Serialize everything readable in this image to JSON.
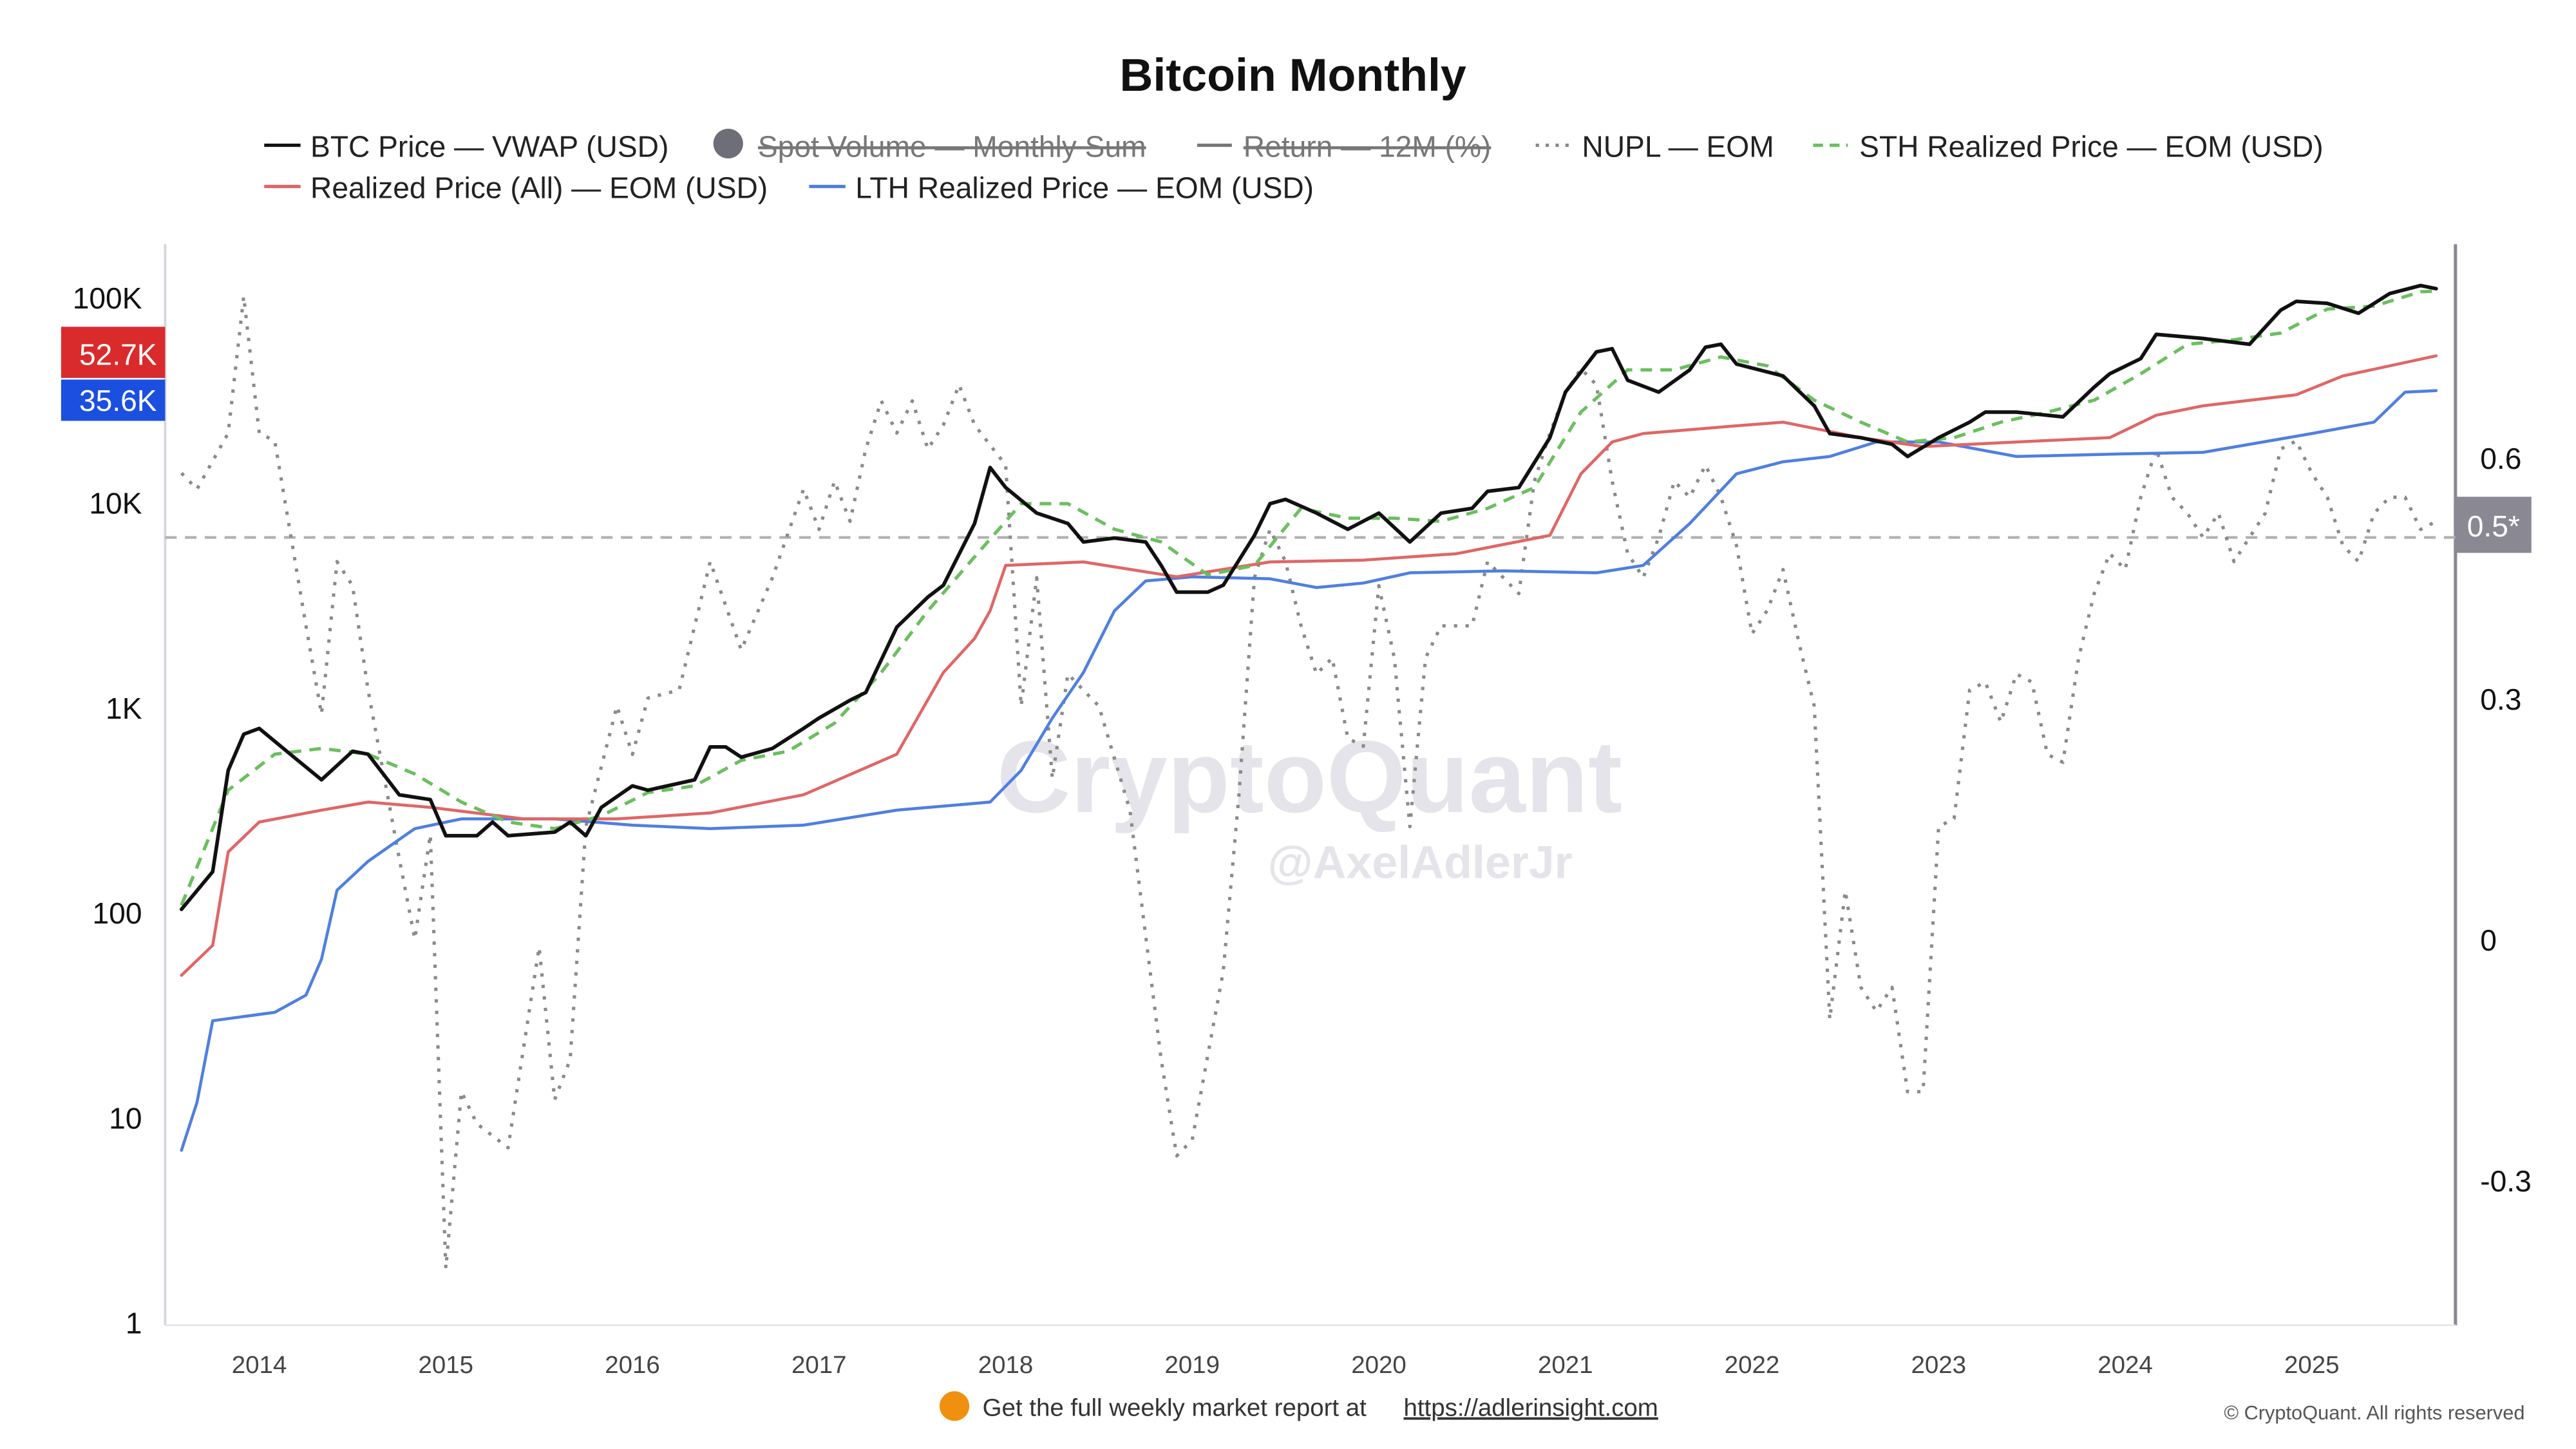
{
  "chart_data": {
    "type": "line",
    "title": "Bitcoin Monthly",
    "legend": [
      {
        "name": "BTC Price — VWAP (USD)",
        "color": "#111111",
        "style": "solid",
        "visible": true
      },
      {
        "name": "Spot Volume — Monthly Sum",
        "color": "#6e6e78",
        "style": "circle",
        "visible": false
      },
      {
        "name": "Return — 12M (%)",
        "color": "#777777",
        "style": "solid",
        "visible": false
      },
      {
        "name": "NUPL — EOM",
        "color": "#888888",
        "style": "dotted",
        "visible": true
      },
      {
        "name": "STH Realized Price — EOM (USD)",
        "color": "#6abf5e",
        "style": "dashed",
        "visible": true
      },
      {
        "name": "Realized Price (All) — EOM (USD)",
        "color": "#e06666",
        "style": "solid",
        "visible": true
      },
      {
        "name": "LTH Realized Price — EOM (USD)",
        "color": "#4f7fe0",
        "style": "solid",
        "visible": true
      }
    ],
    "legend_position": "top",
    "y_left": {
      "scale": "log",
      "range": [
        1,
        100000
      ],
      "ticks": [
        "1",
        "10",
        "100",
        "1K",
        "10K",
        "100K"
      ]
    },
    "y_right": {
      "scale": "linear",
      "range": [
        -0.45,
        0.8
      ],
      "ticks": [
        "-0.3",
        "0",
        "0.3",
        "0.6"
      ]
    },
    "x_ticks": [
      "2014",
      "2015",
      "2016",
      "2017",
      "2018",
      "2019",
      "2020",
      "2021",
      "2022",
      "2023",
      "2024",
      "2025"
    ],
    "grid": false,
    "reference_line": {
      "axis": "right",
      "value": 0.5,
      "label": "0.5*",
      "color": "#8a8893"
    },
    "last_value_badges": [
      {
        "label": "52.7K",
        "series": "Realized Price (All) — EOM (USD)",
        "color": "#d92b2b"
      },
      {
        "label": "35.6K",
        "series": "LTH Realized Price — EOM (USD)",
        "color": "#1a4fe0"
      }
    ],
    "series": [
      {
        "name": "BTC Price — VWAP (USD)",
        "axis": "left",
        "x": [
          "2013-08",
          "2013-10",
          "2013-11",
          "2013-12",
          "2014-01",
          "2014-03",
          "2014-05",
          "2014-07",
          "2014-08",
          "2014-10",
          "2014-12",
          "2015-01",
          "2015-03",
          "2015-04",
          "2015-05",
          "2015-08",
          "2015-09",
          "2015-10",
          "2015-11",
          "2016-01",
          "2016-02",
          "2016-05",
          "2016-06",
          "2016-07",
          "2016-08",
          "2016-10",
          "2016-12",
          "2017-01",
          "2017-03",
          "2017-04",
          "2017-06",
          "2017-08",
          "2017-09",
          "2017-11",
          "2017-12",
          "2018-01",
          "2018-03",
          "2018-05",
          "2018-06",
          "2018-08",
          "2018-10",
          "2018-11",
          "2018-12",
          "2019-02",
          "2019-03",
          "2019-05",
          "2019-06",
          "2019-07",
          "2019-09",
          "2019-11",
          "2020-01",
          "2020-03",
          "2020-05",
          "2020-07",
          "2020-08",
          "2020-10",
          "2020-12",
          "2021-01",
          "2021-03",
          "2021-04",
          "2021-05",
          "2021-07",
          "2021-09",
          "2021-10",
          "2021-11",
          "2021-12",
          "2022-03",
          "2022-05",
          "2022-06",
          "2022-08",
          "2022-10",
          "2022-11",
          "2023-01",
          "2023-03",
          "2023-04",
          "2023-06",
          "2023-08",
          "2023-09",
          "2023-11",
          "2023-12",
          "2024-02",
          "2024-03",
          "2024-06",
          "2024-09",
          "2024-11",
          "2024-12",
          "2025-02",
          "2025-04",
          "2025-06",
          "2025-08",
          "2025-09"
        ],
        "y": [
          105,
          160,
          500,
          750,
          800,
          600,
          450,
          620,
          600,
          380,
          360,
          240,
          240,
          280,
          240,
          250,
          280,
          240,
          330,
          420,
          400,
          450,
          650,
          650,
          580,
          640,
          800,
          900,
          1100,
          1200,
          2500,
          3500,
          4000,
          8000,
          15000,
          12000,
          9000,
          8000,
          6500,
          6800,
          6500,
          5000,
          3700,
          3700,
          4000,
          7000,
          10000,
          10500,
          9000,
          7500,
          9000,
          6500,
          9000,
          9500,
          11500,
          12000,
          21000,
          35000,
          55000,
          57000,
          40000,
          35000,
          45000,
          58000,
          60000,
          48000,
          42000,
          30000,
          22000,
          21000,
          19500,
          17000,
          21000,
          25000,
          28000,
          28000,
          27000,
          26500,
          37000,
          43000,
          51000,
          67000,
          64000,
          60000,
          88000,
          97000,
          95000,
          85000,
          106000,
          116000,
          112000
        ]
      },
      {
        "name": "STH Realized Price — EOM (USD)",
        "axis": "left",
        "x": [
          "2013-08",
          "2013-11",
          "2014-02",
          "2014-05",
          "2014-08",
          "2014-11",
          "2015-02",
          "2015-05",
          "2015-08",
          "2015-11",
          "2016-02",
          "2016-05",
          "2016-08",
          "2016-11",
          "2017-02",
          "2017-05",
          "2017-08",
          "2017-11",
          "2018-02",
          "2018-05",
          "2018-08",
          "2018-11",
          "2019-02",
          "2019-05",
          "2019-08",
          "2019-11",
          "2020-02",
          "2020-05",
          "2020-08",
          "2020-11",
          "2021-02",
          "2021-05",
          "2021-08",
          "2021-11",
          "2022-02",
          "2022-05",
          "2022-08",
          "2022-11",
          "2023-02",
          "2023-05",
          "2023-08",
          "2023-11",
          "2024-02",
          "2024-05",
          "2024-08",
          "2024-11",
          "2025-02",
          "2025-05",
          "2025-08",
          "2025-09"
        ],
        "y": [
          110,
          400,
          600,
          640,
          600,
          480,
          350,
          280,
          260,
          300,
          390,
          420,
          560,
          620,
          850,
          1500,
          3000,
          5500,
          10000,
          10000,
          7500,
          6500,
          4500,
          5000,
          9500,
          8500,
          8500,
          8200,
          9500,
          12000,
          28000,
          45000,
          45000,
          52000,
          47000,
          32000,
          25000,
          20000,
          21000,
          25000,
          28000,
          32000,
          43000,
          60000,
          63000,
          68000,
          89000,
          92000,
          108000,
          109000
        ]
      },
      {
        "name": "Realized Price (All) — EOM (USD)",
        "axis": "left",
        "x": [
          "2013-08",
          "2013-10",
          "2013-11",
          "2014-01",
          "2014-05",
          "2014-08",
          "2014-12",
          "2015-06",
          "2015-12",
          "2016-06",
          "2016-12",
          "2017-06",
          "2017-09",
          "2017-11",
          "2017-12",
          "2018-01",
          "2018-06",
          "2018-12",
          "2019-06",
          "2019-12",
          "2020-06",
          "2020-12",
          "2021-02",
          "2021-04",
          "2021-06",
          "2021-12",
          "2022-03",
          "2022-08",
          "2022-12",
          "2023-06",
          "2023-12",
          "2024-03",
          "2024-06",
          "2024-12",
          "2025-03",
          "2025-09"
        ],
        "y": [
          50,
          70,
          200,
          280,
          320,
          350,
          330,
          290,
          290,
          310,
          380,
          600,
          1500,
          2200,
          3000,
          5000,
          5200,
          4400,
          5200,
          5300,
          5700,
          7000,
          14000,
          20000,
          22000,
          24000,
          25000,
          21000,
          19000,
          20000,
          21000,
          27000,
          30000,
          34000,
          42000,
          52700
        ]
      },
      {
        "name": "LTH Realized Price — EOM (USD)",
        "axis": "left",
        "x": [
          "2013-08",
          "2013-09",
          "2013-10",
          "2014-02",
          "2014-04",
          "2014-05",
          "2014-06",
          "2014-08",
          "2014-11",
          "2015-02",
          "2015-08",
          "2016-01",
          "2016-06",
          "2016-12",
          "2017-06",
          "2017-12",
          "2018-02",
          "2018-04",
          "2018-06",
          "2018-08",
          "2018-10",
          "2019-01",
          "2019-06",
          "2019-09",
          "2019-12",
          "2020-03",
          "2020-09",
          "2021-03",
          "2021-06",
          "2021-09",
          "2021-12",
          "2022-03",
          "2022-06",
          "2022-09",
          "2023-01",
          "2023-06",
          "2024-01",
          "2024-06",
          "2025-01",
          "2025-05",
          "2025-07",
          "2025-09"
        ],
        "y": [
          7,
          12,
          30,
          33,
          40,
          60,
          130,
          180,
          260,
          290,
          290,
          270,
          260,
          270,
          320,
          350,
          500,
          900,
          1500,
          3000,
          4200,
          4400,
          4300,
          3900,
          4100,
          4600,
          4700,
          4600,
          5000,
          8000,
          14000,
          16000,
          17000,
          20000,
          20000,
          17000,
          17500,
          17800,
          22000,
          25000,
          35000,
          35600
        ]
      },
      {
        "name": "NUPL — EOM",
        "axis": "right",
        "x": [
          "2013-08",
          "2013-09",
          "2013-11",
          "2013-12",
          "2014-01",
          "2014-02",
          "2014-04",
          "2014-05",
          "2014-06",
          "2014-07",
          "2014-08",
          "2014-10",
          "2014-11",
          "2014-12",
          "2015-01",
          "2015-02",
          "2015-03",
          "2015-05",
          "2015-07",
          "2015-08",
          "2015-09",
          "2015-10",
          "2015-12",
          "2016-01",
          "2016-02",
          "2016-04",
          "2016-06",
          "2016-08",
          "2016-10",
          "2016-12",
          "2017-01",
          "2017-02",
          "2017-03",
          "2017-04",
          "2017-05",
          "2017-06",
          "2017-07",
          "2017-08",
          "2017-09",
          "2017-10",
          "2017-11",
          "2018-01",
          "2018-02",
          "2018-03",
          "2018-04",
          "2018-05",
          "2018-07",
          "2018-09",
          "2018-11",
          "2018-12",
          "2019-01",
          "2019-03",
          "2019-04",
          "2019-05",
          "2019-06",
          "2019-07",
          "2019-08",
          "2019-09",
          "2019-10",
          "2019-11",
          "2019-12",
          "2020-01",
          "2020-02",
          "2020-03",
          "2020-04",
          "2020-05",
          "2020-07",
          "2020-08",
          "2020-10",
          "2020-11",
          "2020-12",
          "2021-01",
          "2021-02",
          "2021-03",
          "2021-04",
          "2021-05",
          "2021-06",
          "2021-07",
          "2021-08",
          "2021-09",
          "2021-10",
          "2021-11",
          "2021-12",
          "2022-01",
          "2022-02",
          "2022-03",
          "2022-04",
          "2022-05",
          "2022-06",
          "2022-07",
          "2022-08",
          "2022-09",
          "2022-10",
          "2022-11",
          "2022-12",
          "2023-01",
          "2023-02",
          "2023-03",
          "2023-04",
          "2023-05",
          "2023-06",
          "2023-07",
          "2023-08",
          "2023-09",
          "2023-10",
          "2023-11",
          "2023-12",
          "2024-01",
          "2024-02",
          "2024-03",
          "2024-04",
          "2024-05",
          "2024-06",
          "2024-07",
          "2024-08",
          "2024-09",
          "2024-10",
          "2024-11",
          "2024-12",
          "2025-01",
          "2025-02",
          "2025-03",
          "2025-04",
          "2025-05",
          "2025-06",
          "2025-07",
          "2025-08",
          "2025-09"
        ],
        "y": [
          0.58,
          0.56,
          0.63,
          0.8,
          0.63,
          0.62,
          0.39,
          0.28,
          0.47,
          0.44,
          0.31,
          0.1,
          0.0,
          0.13,
          -0.41,
          -0.19,
          -0.23,
          -0.26,
          -0.01,
          -0.2,
          -0.15,
          0.14,
          0.29,
          0.23,
          0.3,
          0.31,
          0.47,
          0.36,
          0.45,
          0.56,
          0.51,
          0.57,
          0.52,
          0.61,
          0.67,
          0.63,
          0.67,
          0.61,
          0.64,
          0.69,
          0.64,
          0.59,
          0.29,
          0.45,
          0.2,
          0.33,
          0.29,
          0.16,
          -0.15,
          -0.27,
          -0.25,
          -0.04,
          0.18,
          0.45,
          0.51,
          0.47,
          0.39,
          0.33,
          0.35,
          0.25,
          0.24,
          0.44,
          0.35,
          0.14,
          0.35,
          0.39,
          0.39,
          0.47,
          0.43,
          0.57,
          0.63,
          0.68,
          0.71,
          0.69,
          0.57,
          0.48,
          0.45,
          0.5,
          0.57,
          0.55,
          0.59,
          0.55,
          0.49,
          0.38,
          0.41,
          0.46,
          0.37,
          0.29,
          -0.1,
          0.06,
          -0.06,
          -0.09,
          -0.06,
          -0.19,
          -0.19,
          0.14,
          0.15,
          0.31,
          0.32,
          0.27,
          0.33,
          0.32,
          0.23,
          0.22,
          0.35,
          0.43,
          0.48,
          0.46,
          0.55,
          0.61,
          0.55,
          0.53,
          0.5,
          0.53,
          0.47,
          0.5,
          0.53,
          0.61,
          0.62,
          0.58,
          0.55,
          0.49,
          0.47,
          0.53,
          0.55,
          0.55,
          0.51,
          0.52
        ]
      }
    ]
  },
  "watermark": {
    "brand": "CryptoQuant",
    "handle": "@AxelAdlerJr"
  },
  "footer": {
    "report_text": "Get the full weekly market report at",
    "report_link": "https://adlerinsight.com",
    "copyright": "© CryptoQuant. All rights reserved"
  }
}
